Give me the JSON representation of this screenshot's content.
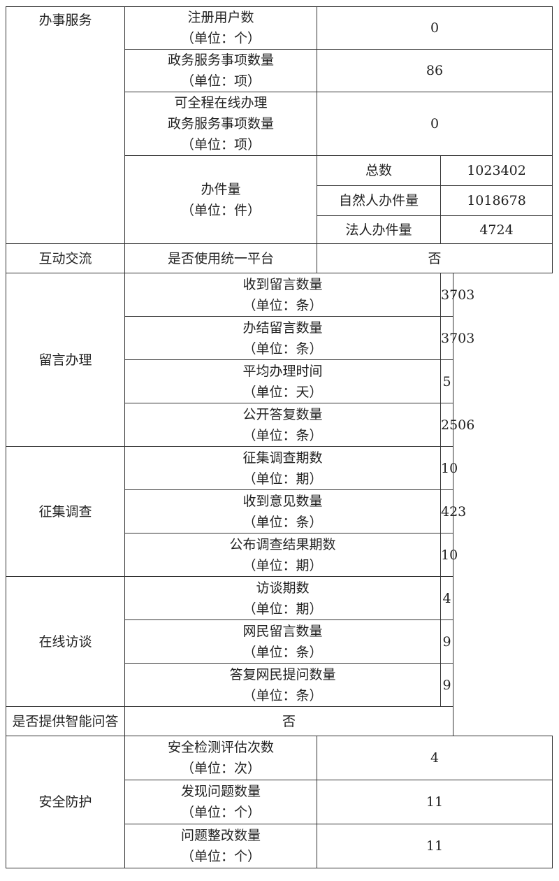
{
  "sections": {
    "service": {
      "label": "办事服务",
      "registered_users": {
        "label": "注册用户数",
        "unit": "（单位：个）",
        "value": "0"
      },
      "service_items": {
        "label": "政务服务事项数量",
        "unit": "（单位：项）",
        "value": "86"
      },
      "online_items": {
        "label1": "可全程在线办理",
        "label2": "政务服务事项数量",
        "unit": "（单位：项）",
        "value": "0"
      },
      "cases": {
        "label": "办件量",
        "unit": "（单位：件）",
        "total": {
          "label": "总数",
          "value": "1023402"
        },
        "natural": {
          "label": "自然人办件量",
          "value": "1018678"
        },
        "legal": {
          "label": "法人办件量",
          "value": "4724"
        }
      }
    },
    "interaction": {
      "label": "互动交流",
      "unified_platform": {
        "label": "是否使用统一平台",
        "value": "否"
      },
      "messages": {
        "label": "留言办理",
        "items": [
          {
            "label": "收到留言数量",
            "unit": "（单位：条）",
            "value": "3703"
          },
          {
            "label": "办结留言数量",
            "unit": "（单位：条）",
            "value": "3703"
          },
          {
            "label": "平均办理时间",
            "unit": "（单位：天）",
            "value": "5"
          },
          {
            "label": "公开答复数量",
            "unit": "（单位：条）",
            "value": "2506"
          }
        ]
      },
      "survey": {
        "label": "征集调查",
        "items": [
          {
            "label": "征集调查期数",
            "unit": "（单位：期）",
            "value": "10"
          },
          {
            "label": "收到意见数量",
            "unit": "（单位：条）",
            "value": "423"
          },
          {
            "label": "公布调查结果期数",
            "unit": "（单位：期）",
            "value": "10"
          }
        ]
      },
      "interview": {
        "label": "在线访谈",
        "items": [
          {
            "label": "访谈期数",
            "unit": "（单位：期）",
            "value": "4"
          },
          {
            "label": "网民留言数量",
            "unit": "（单位：条）",
            "value": "9"
          },
          {
            "label": "答复网民提问数量",
            "unit": "（单位：条）",
            "value": "9"
          }
        ]
      },
      "smart_qa": {
        "label": "是否提供智能问答",
        "value": "否"
      }
    },
    "security": {
      "label": "安全防护",
      "items": [
        {
          "label": "安全检测评估次数",
          "unit": "（单位：次）",
          "value": "4"
        },
        {
          "label": "发现问题数量",
          "unit": "（单位：个）",
          "value": "11"
        },
        {
          "label": "问题整改数量",
          "unit": "（单位：个）",
          "value": "11"
        }
      ]
    }
  }
}
